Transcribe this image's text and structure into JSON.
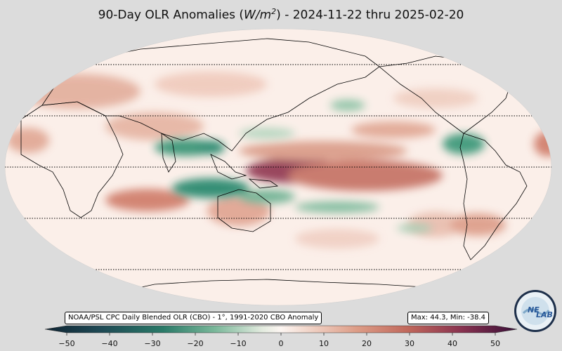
{
  "title": {
    "prefix": "90-Day OLR Anomalies (",
    "unit_main": "W/m",
    "unit_exp": "2",
    "suffix": ") - 2024-11-22 thru 2025-02-20"
  },
  "source_label": "NOAA/PSL CPC Daily Blended OLR (CBO) - 1°, 1991-2020 CBO Anomaly",
  "stats_label": "Max: 44.3,  Min: -38.4",
  "colorbar": {
    "min": -55,
    "max": 55,
    "ticks": [
      "−50",
      "−40",
      "−30",
      "−20",
      "−10",
      "0",
      "10",
      "20",
      "30",
      "40",
      "50"
    ],
    "tick_values": [
      -50,
      -40,
      -30,
      -20,
      -10,
      0,
      10,
      20,
      30,
      40,
      50
    ],
    "colors": {
      "neg_extreme": "#0f2433",
      "neg_strong": "#1f5a55",
      "neg_mid": "#2a8a70",
      "neg_light": "#8ec3a8",
      "neutral": "#fbf1ec",
      "pos_light": "#e7b7a3",
      "pos_mid": "#c86f5c",
      "pos_strong": "#8f3550",
      "pos_extreme": "#3a0f38"
    }
  },
  "logo": {
    "text_ne": "NE",
    "text_lab": "LAB",
    "icon": "psl-lab-logo-icon"
  }
}
